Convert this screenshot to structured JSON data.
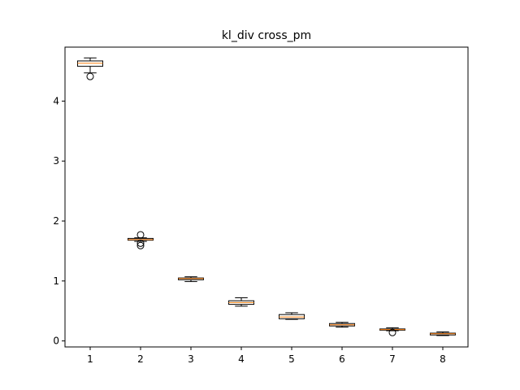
{
  "chart_data": {
    "type": "box",
    "title": "kl_div cross_pm",
    "xlabel": "",
    "ylabel": "",
    "x_ticks": [
      "1",
      "2",
      "3",
      "4",
      "5",
      "6",
      "7",
      "8"
    ],
    "y_ticks": [
      0,
      1,
      2,
      3,
      4
    ],
    "ylim": [
      -0.1,
      4.9
    ],
    "grid": false,
    "median_color": "#ff7f0e",
    "box_color": "#000000",
    "boxes": [
      {
        "label": "1",
        "whislo": 4.47,
        "q1": 4.58,
        "med": 4.63,
        "q3": 4.67,
        "whishi": 4.72,
        "fliers": [
          4.41
        ]
      },
      {
        "label": "2",
        "whislo": 1.66,
        "q1": 1.68,
        "med": 1.69,
        "q3": 1.71,
        "whishi": 1.72,
        "fliers": [
          1.59,
          1.63,
          1.77
        ]
      },
      {
        "label": "3",
        "whislo": 0.99,
        "q1": 1.02,
        "med": 1.04,
        "q3": 1.05,
        "whishi": 1.07,
        "fliers": []
      },
      {
        "label": "4",
        "whislo": 0.58,
        "q1": 0.61,
        "med": 0.64,
        "q3": 0.67,
        "whishi": 0.72,
        "fliers": []
      },
      {
        "label": "5",
        "whislo": 0.36,
        "q1": 0.37,
        "med": 0.4,
        "q3": 0.44,
        "whishi": 0.47,
        "fliers": []
      },
      {
        "label": "6",
        "whislo": 0.23,
        "q1": 0.25,
        "med": 0.27,
        "q3": 0.29,
        "whishi": 0.31,
        "fliers": []
      },
      {
        "label": "7",
        "whislo": 0.17,
        "q1": 0.18,
        "med": 0.19,
        "q3": 0.2,
        "whishi": 0.22,
        "fliers": [
          0.14
        ]
      },
      {
        "label": "8",
        "whislo": 0.09,
        "q1": 0.1,
        "med": 0.12,
        "q3": 0.13,
        "whishi": 0.15,
        "fliers": []
      }
    ]
  }
}
